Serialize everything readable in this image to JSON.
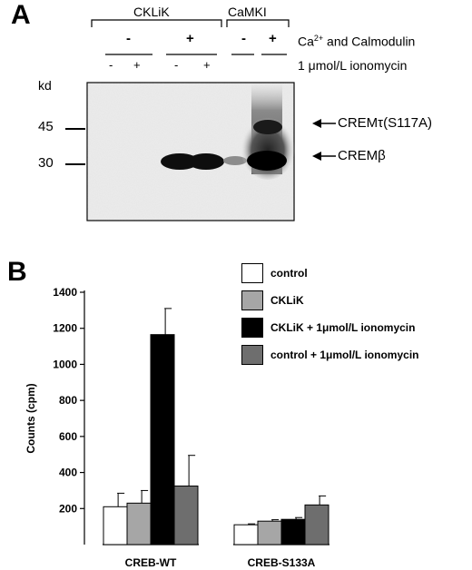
{
  "panel_a": {
    "letter": "A",
    "group_ckli": "CKLiK",
    "group_camki": "CaMKI",
    "ca_label": "Ca",
    "ca_sup": "2+",
    "ca_label_rest": " and Calmodulin",
    "iono_label": "1 μmol/L  ionomycin",
    "kd_label": "kd",
    "kd_45": "45",
    "kd_30": "30",
    "band_upper": "CREMτ(S117A)",
    "band_lower": "CREMβ",
    "ca_signs": [
      "-",
      "+",
      "-",
      "+"
    ],
    "iono_signs": [
      "-",
      "+",
      "-",
      "+"
    ]
  },
  "panel_b": {
    "letter": "B"
  },
  "chart_data": {
    "type": "bar",
    "categories": [
      "CREB-WT",
      "CREB-S133A"
    ],
    "ylabel": "Counts (cpm)",
    "xlabel": "",
    "ylim": [
      0,
      1400
    ],
    "yticks": [
      200,
      400,
      600,
      800,
      1000,
      1200,
      1400
    ],
    "legend_position": "top-right",
    "series": [
      {
        "name": "control",
        "color": "#ffffff",
        "values": [
          210,
          110
        ],
        "errors": [
          75,
          5
        ]
      },
      {
        "name": "CKLiK",
        "color": "#a6a6a6",
        "values": [
          230,
          130
        ],
        "errors": [
          70,
          8
        ]
      },
      {
        "name": "CKLiK + 1μmol/L ionomycin",
        "color": "#000000",
        "values": [
          1165,
          140
        ],
        "errors": [
          145,
          10
        ]
      },
      {
        "name": "control + 1μmol/L ionomycin",
        "color": "#6e6e6e",
        "values": [
          325,
          220
        ],
        "errors": [
          170,
          50
        ]
      }
    ]
  }
}
